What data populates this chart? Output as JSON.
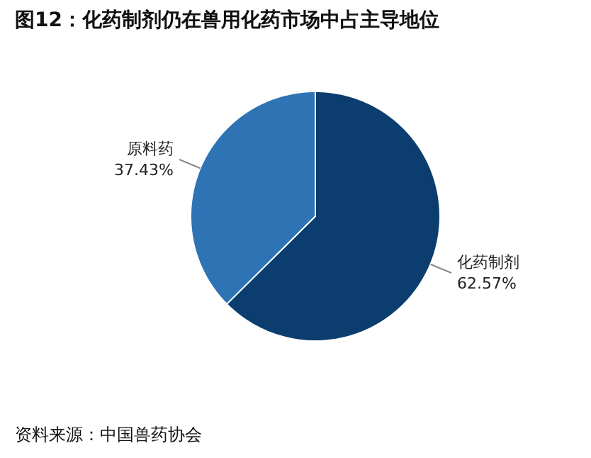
{
  "chart_data": {
    "type": "pie",
    "title": "图12：化药制剂仍在兽用化药市场中占主导地位",
    "categories": [
      "化药制剂",
      "原料药"
    ],
    "values": [
      62.57,
      37.43
    ],
    "value_labels": [
      "62.57%",
      "37.43%"
    ],
    "colors": [
      "#0b3e6f",
      "#2e74b5"
    ],
    "annotations": [
      "资料来源：中国兽药协会"
    ]
  }
}
